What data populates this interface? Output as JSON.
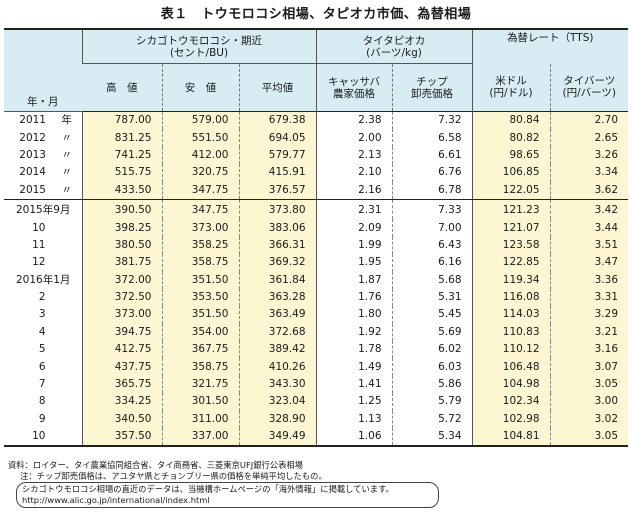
{
  "title": "表１　トウモロコシ相場、タピオカ市価、為替相場",
  "header": {
    "row_label": "年・月",
    "groups": [
      {
        "label": "シカゴトウモロコシ・期近\n(セント/BU)"
      },
      {
        "label": "タイタピオカ\n(バーツ/kg)"
      },
      {
        "label": "為替レート（TTS)"
      }
    ],
    "columns": [
      "高　値",
      "安　値",
      "平均値",
      "キャッサバ\n農家価格",
      "チップ\n卸売価格",
      "米ドル\n(円/ドル)",
      "タイバーツ\n(円/バーツ)"
    ]
  },
  "annual_rows": [
    {
      "label": "2011",
      "suffix": "年",
      "values": [
        "787.00",
        "579.00",
        "679.38",
        "2.38",
        "7.32",
        "80.84",
        "2.70"
      ]
    },
    {
      "label": "2012",
      "suffix": "〃",
      "values": [
        "831.25",
        "551.50",
        "694.05",
        "2.00",
        "6.58",
        "80.82",
        "2.65"
      ]
    },
    {
      "label": "2013",
      "suffix": "〃",
      "values": [
        "741.25",
        "412.00",
        "579.77",
        "2.13",
        "6.61",
        "98.65",
        "3.26"
      ]
    },
    {
      "label": "2014",
      "suffix": "〃",
      "values": [
        "515.75",
        "320.75",
        "415.91",
        "2.10",
        "6.76",
        "106.85",
        "3.34"
      ]
    },
    {
      "label": "2015",
      "suffix": "〃",
      "values": [
        "433.50",
        "347.75",
        "376.57",
        "2.16",
        "6.78",
        "122.05",
        "3.62"
      ]
    }
  ],
  "monthly_rows": [
    {
      "label": "2015年9月",
      "values": [
        "390.50",
        "347.75",
        "373.80",
        "2.31",
        "7.33",
        "121.23",
        "3.42"
      ]
    },
    {
      "label": "10",
      "values": [
        "398.25",
        "373.00",
        "383.06",
        "2.09",
        "7.00",
        "121.07",
        "3.44"
      ]
    },
    {
      "label": "11",
      "values": [
        "380.50",
        "358.25",
        "366.31",
        "1.99",
        "6.43",
        "123.58",
        "3.51"
      ]
    },
    {
      "label": "12",
      "values": [
        "381.75",
        "358.75",
        "369.32",
        "1.95",
        "6.16",
        "122.85",
        "3.47"
      ]
    },
    {
      "label": "2016年1月",
      "values": [
        "372.00",
        "351.50",
        "361.84",
        "1.87",
        "5.68",
        "119.34",
        "3.36"
      ]
    },
    {
      "label": "2",
      "values": [
        "372.50",
        "353.50",
        "363.28",
        "1.76",
        "5.31",
        "116.08",
        "3.31"
      ]
    },
    {
      "label": "3",
      "values": [
        "373.00",
        "351.50",
        "363.49",
        "1.80",
        "5.45",
        "114.03",
        "3.29"
      ]
    },
    {
      "label": "4",
      "values": [
        "394.75",
        "354.00",
        "372.68",
        "1.92",
        "5.69",
        "110.83",
        "3.21"
      ]
    },
    {
      "label": "5",
      "values": [
        "412.75",
        "367.75",
        "389.42",
        "1.78",
        "6.02",
        "110.12",
        "3.16"
      ]
    },
    {
      "label": "6",
      "values": [
        "437.75",
        "358.75",
        "410.26",
        "1.49",
        "6.03",
        "106.48",
        "3.07"
      ]
    },
    {
      "label": "7",
      "values": [
        "365.75",
        "321.75",
        "343.30",
        "1.41",
        "5.86",
        "104.98",
        "3.05"
      ]
    },
    {
      "label": "8",
      "values": [
        "334.25",
        "301.50",
        "323.04",
        "1.25",
        "5.79",
        "102.34",
        "3.00"
      ]
    },
    {
      "label": "9",
      "values": [
        "340.50",
        "311.00",
        "328.90",
        "1.13",
        "5.72",
        "102.98",
        "3.02"
      ]
    },
    {
      "label": "10",
      "values": [
        "357.50",
        "337.00",
        "349.49",
        "1.06",
        "5.34",
        "104.81",
        "3.05"
      ]
    }
  ],
  "notes": {
    "source": "資料：ロイター、タイ農業協同組合省、タイ商務省、三菱東京UFJ銀行公表相場",
    "note": "注：チップ卸売価格は、アユタヤ県とチョンブリー県の価格を単純平均したもの。",
    "box_line1": "シカゴトウモロコシ相場の直近のデータは、当機構ホームページの「海外情報」に掲載しています。",
    "box_line2": "http://www.alic.go.jp/international/index.html"
  }
}
